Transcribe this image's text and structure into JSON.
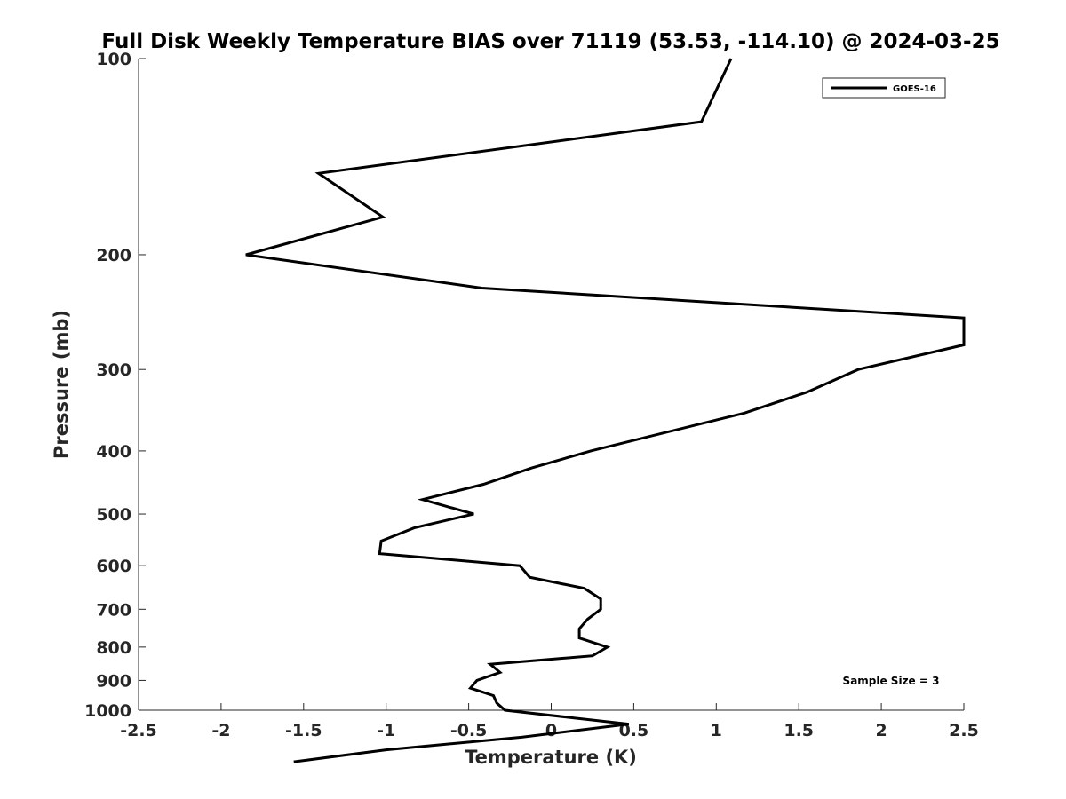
{
  "chart_data": {
    "type": "line",
    "title": "Full Disk Weekly Temperature BIAS over 71119 (53.53, -114.10) @ 2024-03-25",
    "xlabel": "Temperature (K)",
    "ylabel": "Pressure (mb)",
    "xlim": [
      -2.5,
      2.5
    ],
    "ylim": [
      1000,
      100
    ],
    "y_scale": "log",
    "grid": false,
    "legend_position": "top-right",
    "x_ticks": [
      {
        "value": -2.5,
        "label": "-2.5"
      },
      {
        "value": -2,
        "label": "-2"
      },
      {
        "value": -1.5,
        "label": "-1.5"
      },
      {
        "value": -1,
        "label": "-1"
      },
      {
        "value": -0.5,
        "label": "-0.5"
      },
      {
        "value": 0,
        "label": "0"
      },
      {
        "value": 0.5,
        "label": "0.5"
      },
      {
        "value": 1,
        "label": "1"
      },
      {
        "value": 1.5,
        "label": "1.5"
      },
      {
        "value": 2,
        "label": "2"
      },
      {
        "value": 2.5,
        "label": "2.5"
      }
    ],
    "y_ticks": [
      {
        "value": 100,
        "label": "100"
      },
      {
        "value": 200,
        "label": "200"
      },
      {
        "value": 300,
        "label": "300"
      },
      {
        "value": 400,
        "label": "400"
      },
      {
        "value": 500,
        "label": "500"
      },
      {
        "value": 600,
        "label": "600"
      },
      {
        "value": 700,
        "label": "700"
      },
      {
        "value": 800,
        "label": "800"
      },
      {
        "value": 900,
        "label": "900"
      },
      {
        "value": 1000,
        "label": "1000"
      }
    ],
    "series": [
      {
        "name": "GOES-16",
        "color": "#000000",
        "points": [
          {
            "x": 1.09,
            "p": 100
          },
          {
            "x": 0.91,
            "p": 125
          },
          {
            "x": -1.41,
            "p": 150
          },
          {
            "x": -1.02,
            "p": 175
          },
          {
            "x": -1.85,
            "p": 200
          },
          {
            "x": -0.42,
            "p": 225
          },
          {
            "x": 2.5,
            "p": 250
          },
          {
            "x": 2.5,
            "p": 275
          },
          {
            "x": 1.86,
            "p": 300
          },
          {
            "x": 1.55,
            "p": 325
          },
          {
            "x": 1.17,
            "p": 350
          },
          {
            "x": 0.24,
            "p": 400
          },
          {
            "x": -0.12,
            "p": 425
          },
          {
            "x": -0.41,
            "p": 450
          },
          {
            "x": -0.78,
            "p": 475
          },
          {
            "x": -0.47,
            "p": 500
          },
          {
            "x": -0.83,
            "p": 525
          },
          {
            "x": -1.03,
            "p": 550
          },
          {
            "x": -1.04,
            "p": 575
          },
          {
            "x": -0.19,
            "p": 600
          },
          {
            "x": -0.13,
            "p": 625
          },
          {
            "x": 0.2,
            "p": 650
          },
          {
            "x": 0.3,
            "p": 675
          },
          {
            "x": 0.3,
            "p": 700
          },
          {
            "x": 0.22,
            "p": 725
          },
          {
            "x": 0.17,
            "p": 750
          },
          {
            "x": 0.17,
            "p": 775
          },
          {
            "x": 0.34,
            "p": 800
          },
          {
            "x": 0.25,
            "p": 825
          },
          {
            "x": -0.37,
            "p": 850
          },
          {
            "x": -0.31,
            "p": 875
          },
          {
            "x": -0.45,
            "p": 900
          },
          {
            "x": -0.49,
            "p": 925
          },
          {
            "x": -0.35,
            "p": 950
          },
          {
            "x": -0.33,
            "p": 975
          },
          {
            "x": -0.28,
            "p": 1000
          },
          {
            "x": 0.47,
            "p": 1050
          },
          {
            "x": -0.18,
            "p": 1100
          },
          {
            "x": -1.0,
            "p": 1150
          },
          {
            "x": -1.56,
            "p": 1200
          }
        ]
      }
    ],
    "annotations": [
      {
        "text": "Sample Size = 3",
        "position": "bottom-right"
      }
    ]
  }
}
